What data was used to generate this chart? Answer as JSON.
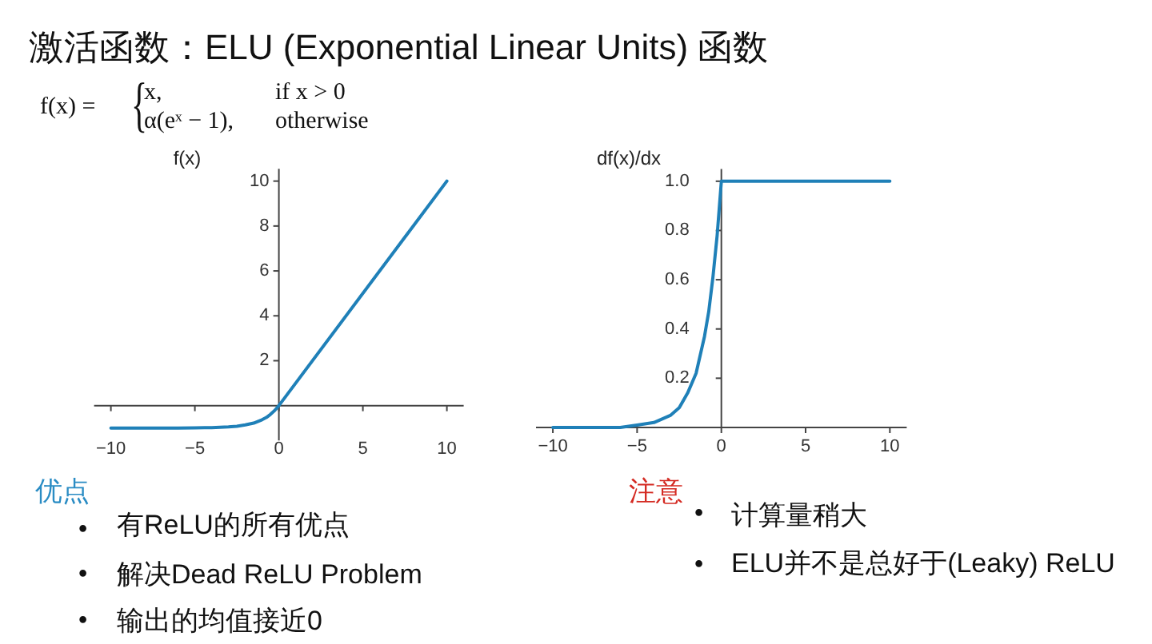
{
  "chart_data": [
    {
      "type": "line",
      "title": "激活函数：ELU (Exponential Linear Units) 函数",
      "ylabel": "f(x)",
      "x": [
        -10,
        -8,
        -6,
        -5,
        -4,
        -3,
        -2.5,
        -2,
        -1.5,
        -1,
        -0.75,
        -0.5,
        -0.25,
        0,
        10
      ],
      "series": [
        {
          "color": "#1f80b8",
          "values": [
            -1.0,
            -1.0,
            -1.0,
            -0.99,
            -0.98,
            -0.95,
            -0.92,
            -0.86,
            -0.78,
            -0.63,
            -0.53,
            -0.39,
            -0.22,
            0,
            10
          ]
        }
      ],
      "xlim": [
        -11,
        11
      ],
      "ylim": [
        -1.55,
        10.55
      ],
      "xticks": [
        -10,
        -5,
        0,
        5,
        10
      ],
      "yticks": [
        2,
        4,
        6,
        8,
        10
      ],
      "annotations": [
        "f(x) =",
        "{",
        "x,",
        "if x > 0",
        "α(eˣ − 1),",
        "otherwise",
        "优点",
        "•",
        "有ReLU的所有优点",
        "•",
        "解决Dead ReLU Problem",
        "•",
        "输出的均值接近0"
      ]
    },
    {
      "type": "line",
      "ylabel": "df(x)/dx",
      "x": [
        -10,
        -6,
        -5,
        -4,
        -3,
        -2.5,
        -2,
        -1.5,
        -1,
        -0.75,
        -0.5,
        -0.25,
        0,
        10
      ],
      "series": [
        {
          "color": "#1f80b8",
          "values": [
            0,
            0,
            0.01,
            0.02,
            0.05,
            0.08,
            0.14,
            0.22,
            0.37,
            0.47,
            0.61,
            0.78,
            1.0,
            1.0
          ]
        }
      ],
      "xlim": [
        -11,
        11
      ],
      "ylim": [
        0,
        1.05
      ],
      "xticks": [
        -10,
        -5,
        0,
        5,
        10
      ],
      "yticks": [
        0.2,
        0.4,
        0.6,
        0.8,
        {
          "value": 1,
          "label": "1.0"
        }
      ],
      "annotations": [
        "注意",
        "•",
        "计算量稍大",
        "•",
        "ELU并不是总好于(Leaky) ReLU"
      ]
    }
  ]
}
